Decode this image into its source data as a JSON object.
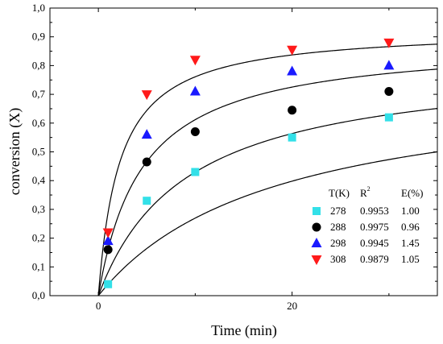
{
  "chart_data": {
    "type": "scatter",
    "xlabel": "Time (min)",
    "ylabel": "conversion (X)",
    "xlim": [
      -5,
      35
    ],
    "ylim": [
      0.0,
      1.0
    ],
    "xticks": [
      "0",
      "20"
    ],
    "xtick_values": [
      0,
      20
    ],
    "yticks": [
      "0,0",
      "0,1",
      "0,2",
      "0,3",
      "0,4",
      "0,5",
      "0,6",
      "0,7",
      "0,8",
      "0,9",
      "1,0"
    ],
    "ytick_values": [
      0.0,
      0.1,
      0.2,
      0.3,
      0.4,
      0.5,
      0.6,
      0.7,
      0.8,
      0.9,
      1.0
    ],
    "grid": false,
    "legend_position": "bottom-right",
    "legend_headers": {
      "col1": "T(K)",
      "col2_base": "R",
      "col2_sup": "2",
      "col3": "E(%)"
    },
    "series": [
      {
        "name": "278",
        "r2": "0.9953",
        "e": "1.00",
        "marker": "square",
        "color": "#33e0e8",
        "x": [
          1,
          5,
          10,
          20,
          30
        ],
        "y": [
          0.04,
          0.33,
          0.43,
          0.55,
          0.62
        ],
        "fit": {
          "xmax": 0.76,
          "k": 0.055
        }
      },
      {
        "name": "288",
        "r2": "0.9975",
        "e": "0.96",
        "marker": "circle",
        "color": "#000000",
        "x": [
          1,
          5,
          10,
          20,
          30
        ],
        "y": [
          0.16,
          0.465,
          0.57,
          0.645,
          0.71
        ],
        "fit": {
          "xmax": 0.82,
          "k": 0.11
        }
      },
      {
        "name": "298",
        "r2": "0.9945",
        "e": "1.45",
        "marker": "triangle-up",
        "color": "#1a1aff",
        "x": [
          1,
          5,
          10,
          20,
          30
        ],
        "y": [
          0.19,
          0.56,
          0.71,
          0.78,
          0.8
        ],
        "fit": {
          "xmax": 0.89,
          "k": 0.22
        }
      },
      {
        "name": "308",
        "r2": "0.9879",
        "e": "1.05",
        "marker": "triangle-down",
        "color": "#ff1a1a",
        "x": [
          1,
          5,
          10,
          20,
          30
        ],
        "y": [
          0.22,
          0.7,
          0.82,
          0.855,
          0.88
        ],
        "fit": {
          "xmax": 0.93,
          "k": 0.45
        }
      }
    ]
  }
}
